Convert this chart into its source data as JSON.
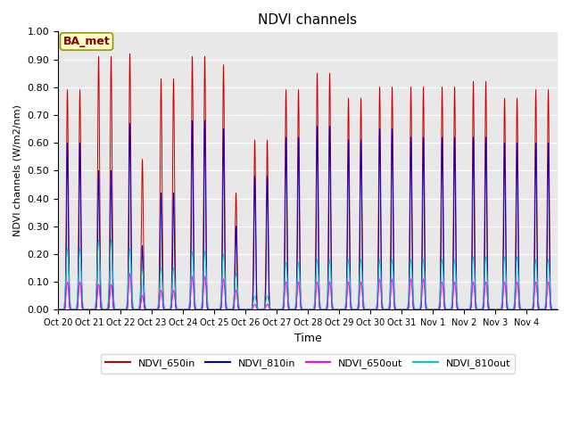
{
  "title": "NDVI channels",
  "ylabel": "NDVI channels (W/m2/nm)",
  "xlabel": "Time",
  "ylim": [
    0.0,
    1.0
  ],
  "background_color": "#e8e8e8",
  "fig_bg_color": "#ffffff",
  "annotation_text": "BA_met",
  "annotation_bg": "#ffffcc",
  "annotation_border": "#8b0000",
  "legend_labels": [
    "NDVI_650in",
    "NDVI_810in",
    "NDVI_650out",
    "NDVI_810out"
  ],
  "legend_colors": [
    "#cc0000",
    "#0000cc",
    "#ff00ff",
    "#00cccc"
  ],
  "xtick_labels": [
    "Oct 20",
    "Oct 21",
    "Oct 22",
    "Oct 23",
    "Oct 24",
    "Oct 25",
    "Oct 26",
    "Oct 27",
    "Oct 28",
    "Oct 29",
    "Oct 30",
    "Oct 31",
    "Nov 1",
    "Nov 2",
    "Nov 3",
    "Nov 4"
  ],
  "num_days": 16,
  "peaks_650in": [
    0.79,
    0.91,
    0.92,
    0.83,
    0.91,
    0.88,
    0.61,
    0.79,
    0.85,
    0.76,
    0.8,
    0.8,
    0.8,
    0.82,
    0.76,
    0.79
  ],
  "peaks2_650in": [
    0.79,
    0.91,
    0.54,
    0.83,
    0.91,
    0.42,
    0.61,
    0.79,
    0.85,
    0.76,
    0.8,
    0.8,
    0.8,
    0.82,
    0.76,
    0.79
  ],
  "peaks_810in": [
    0.6,
    0.5,
    0.67,
    0.42,
    0.68,
    0.65,
    0.48,
    0.62,
    0.66,
    0.61,
    0.65,
    0.62,
    0.62,
    0.62,
    0.6,
    0.6
  ],
  "peaks2_810in": [
    0.6,
    0.5,
    0.23,
    0.42,
    0.68,
    0.3,
    0.48,
    0.62,
    0.66,
    0.61,
    0.65,
    0.62,
    0.62,
    0.62,
    0.6,
    0.6
  ],
  "peaks_650out": [
    0.1,
    0.09,
    0.13,
    0.07,
    0.12,
    0.11,
    0.02,
    0.1,
    0.1,
    0.1,
    0.11,
    0.11,
    0.1,
    0.1,
    0.1,
    0.1
  ],
  "peaks2_650out": [
    0.1,
    0.09,
    0.05,
    0.07,
    0.12,
    0.07,
    0.02,
    0.1,
    0.1,
    0.1,
    0.11,
    0.11,
    0.1,
    0.1,
    0.1,
    0.1
  ],
  "peaks_810out": [
    0.22,
    0.25,
    0.22,
    0.15,
    0.21,
    0.2,
    0.05,
    0.17,
    0.18,
    0.18,
    0.18,
    0.18,
    0.18,
    0.19,
    0.19,
    0.18
  ],
  "peaks2_810out": [
    0.22,
    0.25,
    0.15,
    0.15,
    0.21,
    0.13,
    0.05,
    0.17,
    0.18,
    0.18,
    0.18,
    0.18,
    0.18,
    0.19,
    0.19,
    0.18
  ]
}
